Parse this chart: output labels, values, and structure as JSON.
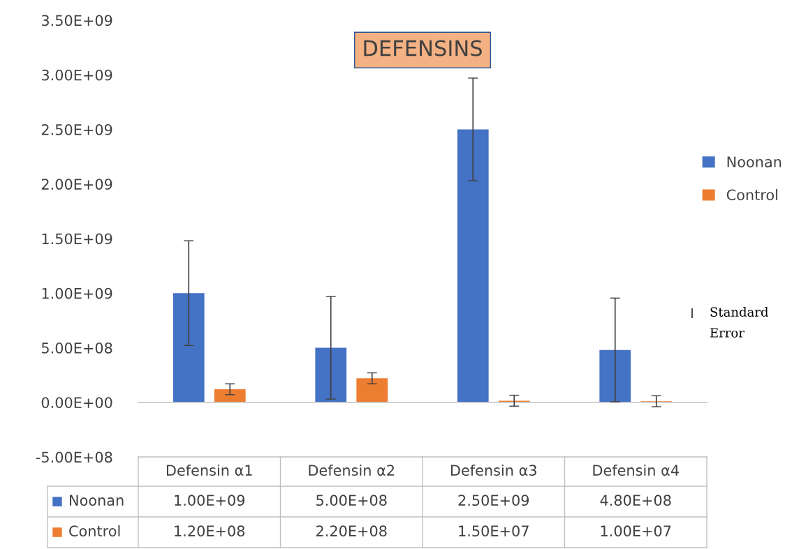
{
  "chart_data": {
    "type": "bar",
    "title": "DEFENSINS",
    "categories": [
      "Defensin α1",
      "Defensin α2",
      "Defensin α3",
      "Defensin α4"
    ],
    "series": [
      {
        "name": "Noonan",
        "color": "#4472c4",
        "values": [
          1000000000.0,
          500000000.0,
          2500000000.0,
          480000000.0
        ],
        "errors": [
          480000000.0,
          470000000.0,
          470000000.0,
          475000000.0
        ],
        "value_labels": [
          "1.00E+09",
          "5.00E+08",
          "2.50E+09",
          "4.80E+08"
        ]
      },
      {
        "name": "Control",
        "color": "#ed7d31",
        "values": [
          120000000.0,
          220000000.0,
          15000000.0,
          10000000.0
        ],
        "errors": [
          50000000.0,
          50000000.0,
          50000000.0,
          50000000.0
        ],
        "value_labels": [
          "1.20E+08",
          "2.20E+08",
          "1.50E+07",
          "1.00E+07"
        ]
      }
    ],
    "annotations": [
      "Standard Error"
    ],
    "ylim": [
      -500000000.0,
      3500000000.0
    ],
    "yticks": [
      {
        "value": -500000000.0,
        "label": "-5.00E+08"
      },
      {
        "value": 0,
        "label": "0.00E+00"
      },
      {
        "value": 500000000.0,
        "label": "5.00E+08"
      },
      {
        "value": 1000000000.0,
        "label": "1.00E+09"
      },
      {
        "value": 1500000000.0,
        "label": "1.50E+09"
      },
      {
        "value": 2000000000.0,
        "label": "2.00E+09"
      },
      {
        "value": 2500000000.0,
        "label": "2.50E+09"
      },
      {
        "value": 3000000000.0,
        "label": "3.00E+09"
      },
      {
        "value": 3500000000.0,
        "label": "3.50E+09"
      }
    ],
    "data_labels": true,
    "legend": "right"
  }
}
